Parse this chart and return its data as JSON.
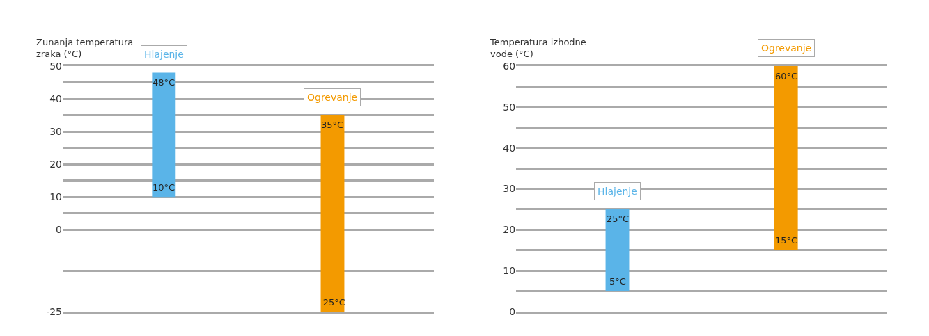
{
  "chart_data": [
    {
      "type": "bar",
      "ylabel": "Zunanja temperatura zraka (°C)",
      "categories": [
        "Hlajenje",
        "Ogrevanje"
      ],
      "base": [
        10,
        -25
      ],
      "values": [
        38,
        60
      ],
      "colors": [
        "#5ab4e8",
        "#f39a00"
      ],
      "ylim": [
        -25,
        50
      ],
      "yticks": [
        -25,
        {
          "value": -12.5,
          "label": null
        },
        0,
        {
          "value": 5,
          "label": null
        },
        10,
        {
          "value": 15,
          "label": null
        },
        20,
        {
          "value": 25,
          "label": null
        },
        30,
        {
          "value": 35,
          "label": null
        },
        40,
        {
          "value": 45,
          "label": null
        },
        50
      ],
      "grid": "y",
      "legend": false,
      "tick_labels": "y",
      "annotations": [
        {
          "text": "48°C",
          "x": "Hlajenje",
          "y": 48
        },
        {
          "text": "10°C",
          "x": "Hlajenje",
          "y": 10
        },
        {
          "text": "35°C",
          "x": "Ogrevanje",
          "y": 35
        },
        {
          "text": "-25°C",
          "x": "Ogrevanje",
          "y": -25
        }
      ]
    },
    {
      "type": "bar",
      "ylabel": "Temperatura izhodne vode (°C)",
      "categories": [
        "Hlajenje",
        "Ogrevanje"
      ],
      "base": [
        5,
        15
      ],
      "values": [
        20,
        45
      ],
      "colors": [
        "#5ab4e8",
        "#f39a00"
      ],
      "ylim": [
        0,
        60
      ],
      "yticks": [
        0,
        {
          "value": 5,
          "label": null
        },
        10,
        {
          "value": 15,
          "label": null
        },
        20,
        {
          "value": 25,
          "label": null
        },
        30,
        {
          "value": 35,
          "label": null
        },
        40,
        {
          "value": 45,
          "label": null
        },
        50,
        {
          "value": 55,
          "label": null
        },
        60
      ],
      "grid": "y",
      "legend": false,
      "tick_labels": "y",
      "annotations": [
        {
          "text": "60°C",
          "x": "Ogrevanje",
          "y": 60
        },
        {
          "text": "15°C",
          "x": "Ogrevanje",
          "y": 15
        },
        {
          "text": "25°C",
          "x": "Hlajenje",
          "y": 25
        },
        {
          "text": "5°C",
          "x": "Hlajenje",
          "y": 5
        }
      ]
    }
  ]
}
